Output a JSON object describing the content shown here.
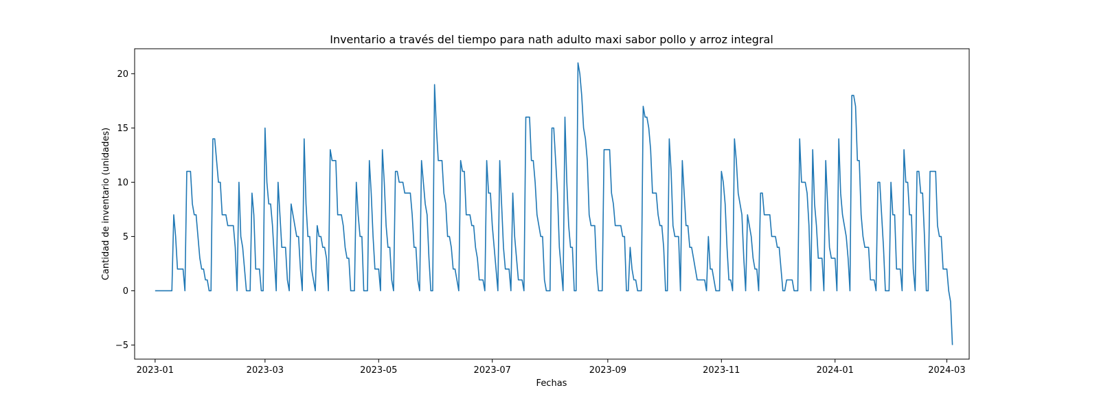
{
  "chart_data": {
    "type": "line",
    "title": "Inventario a través del tiempo para nath adulto maxi sabor pollo y arroz integral",
    "xlabel": "Fechas",
    "ylabel": "Cantidad de inventario (unidades)",
    "x_ticks": [
      "2023-01",
      "2023-03",
      "2023-05",
      "2023-07",
      "2023-09",
      "2023-11",
      "2024-01",
      "2024-03"
    ],
    "y_ticks": [
      -5,
      0,
      5,
      10,
      15,
      20
    ],
    "xlim": [
      "2022-12-21",
      "2024-03-13"
    ],
    "ylim": [
      -6.3,
      22.3
    ],
    "grid": false,
    "legend": "none",
    "colors": {
      "line": "#1f77b4",
      "axes": "#000000"
    },
    "series": [
      {
        "dates": [
          "2023-01-01",
          "2023-01-02",
          "2023-01-04",
          "2023-01-06",
          "2023-01-08",
          "2023-01-10",
          "2023-01-11",
          "2023-01-12",
          "2023-01-13",
          "2023-01-14",
          "2023-01-15",
          "2023-01-16",
          "2023-01-17",
          "2023-01-18",
          "2023-01-19",
          "2023-01-20",
          "2023-01-21",
          "2023-01-22",
          "2023-01-23",
          "2023-01-24",
          "2023-01-25",
          "2023-01-26",
          "2023-01-27",
          "2023-01-28",
          "2023-01-29",
          "2023-01-30",
          "2023-01-31",
          "2023-02-01",
          "2023-02-02",
          "2023-02-03",
          "2023-02-04",
          "2023-02-05",
          "2023-02-06",
          "2023-02-07",
          "2023-02-08",
          "2023-02-09",
          "2023-02-10",
          "2023-02-11",
          "2023-02-12",
          "2023-02-13",
          "2023-02-14",
          "2023-02-15",
          "2023-02-16",
          "2023-02-17",
          "2023-02-18",
          "2023-02-19",
          "2023-02-20",
          "2023-02-21",
          "2023-02-22",
          "2023-02-23",
          "2023-02-24",
          "2023-02-25",
          "2023-02-26",
          "2023-02-27",
          "2023-02-28",
          "2023-03-01",
          "2023-03-02",
          "2023-03-03",
          "2023-03-04",
          "2023-03-05",
          "2023-03-06",
          "2023-03-07",
          "2023-03-08",
          "2023-03-09",
          "2023-03-10",
          "2023-03-11",
          "2023-03-12",
          "2023-03-13",
          "2023-03-14",
          "2023-03-15",
          "2023-03-16",
          "2023-03-17",
          "2023-03-18",
          "2023-03-19",
          "2023-03-20",
          "2023-03-21",
          "2023-03-22",
          "2023-03-23",
          "2023-03-24",
          "2023-03-25",
          "2023-03-26",
          "2023-03-27",
          "2023-03-28",
          "2023-03-29",
          "2023-03-30",
          "2023-03-31",
          "2023-04-01",
          "2023-04-02",
          "2023-04-03",
          "2023-04-04",
          "2023-04-05",
          "2023-04-06",
          "2023-04-07",
          "2023-04-08",
          "2023-04-09",
          "2023-04-10",
          "2023-04-11",
          "2023-04-12",
          "2023-04-13",
          "2023-04-14",
          "2023-04-15",
          "2023-04-16",
          "2023-04-17",
          "2023-04-18",
          "2023-04-19",
          "2023-04-20",
          "2023-04-21",
          "2023-04-22",
          "2023-04-23",
          "2023-04-24",
          "2023-04-25",
          "2023-04-26",
          "2023-04-27",
          "2023-04-28",
          "2023-04-29",
          "2023-04-30",
          "2023-05-01",
          "2023-05-02",
          "2023-05-03",
          "2023-05-04",
          "2023-05-05",
          "2023-05-06",
          "2023-05-07",
          "2023-05-08",
          "2023-05-09",
          "2023-05-10",
          "2023-05-11",
          "2023-05-12",
          "2023-05-13",
          "2023-05-14",
          "2023-05-15",
          "2023-05-16",
          "2023-05-17",
          "2023-05-18",
          "2023-05-19",
          "2023-05-20",
          "2023-05-21",
          "2023-05-22",
          "2023-05-23",
          "2023-05-24",
          "2023-05-25",
          "2023-05-26",
          "2023-05-27",
          "2023-05-28",
          "2023-05-29",
          "2023-05-30",
          "2023-05-31",
          "2023-06-01",
          "2023-06-02",
          "2023-06-03",
          "2023-06-04",
          "2023-06-05",
          "2023-06-06",
          "2023-06-07",
          "2023-06-08",
          "2023-06-09",
          "2023-06-10",
          "2023-06-11",
          "2023-06-12",
          "2023-06-13",
          "2023-06-14",
          "2023-06-15",
          "2023-06-16",
          "2023-06-17",
          "2023-06-18",
          "2023-06-19",
          "2023-06-20",
          "2023-06-21",
          "2023-06-22",
          "2023-06-23",
          "2023-06-24",
          "2023-06-25",
          "2023-06-26",
          "2023-06-27",
          "2023-06-28",
          "2023-06-29",
          "2023-06-30",
          "2023-07-01",
          "2023-07-02",
          "2023-07-03",
          "2023-07-04",
          "2023-07-05",
          "2023-07-06",
          "2023-07-07",
          "2023-07-08",
          "2023-07-09",
          "2023-07-10",
          "2023-07-11",
          "2023-07-12",
          "2023-07-13",
          "2023-07-14",
          "2023-07-15",
          "2023-07-16",
          "2023-07-17",
          "2023-07-18",
          "2023-07-19",
          "2023-07-20",
          "2023-07-21",
          "2023-07-22",
          "2023-07-23",
          "2023-07-24",
          "2023-07-25",
          "2023-07-26",
          "2023-07-27",
          "2023-07-28",
          "2023-07-29",
          "2023-07-30",
          "2023-07-31",
          "2023-08-01",
          "2023-08-02",
          "2023-08-03",
          "2023-08-04",
          "2023-08-05",
          "2023-08-06",
          "2023-08-07",
          "2023-08-08",
          "2023-08-09",
          "2023-08-10",
          "2023-08-11",
          "2023-08-12",
          "2023-08-13",
          "2023-08-14",
          "2023-08-15",
          "2023-08-16",
          "2023-08-17",
          "2023-08-18",
          "2023-08-19",
          "2023-08-20",
          "2023-08-21",
          "2023-08-22",
          "2023-08-23",
          "2023-08-24",
          "2023-08-25",
          "2023-08-26",
          "2023-08-27",
          "2023-08-28",
          "2023-08-29",
          "2023-08-30",
          "2023-08-31",
          "2023-09-01",
          "2023-09-02",
          "2023-09-03",
          "2023-09-04",
          "2023-09-05",
          "2023-09-06",
          "2023-09-07",
          "2023-09-08",
          "2023-09-09",
          "2023-09-10",
          "2023-09-11",
          "2023-09-12",
          "2023-09-13",
          "2023-09-14",
          "2023-09-15",
          "2023-09-16",
          "2023-09-17",
          "2023-09-18",
          "2023-09-19",
          "2023-09-20",
          "2023-09-21",
          "2023-09-22",
          "2023-09-23",
          "2023-09-24",
          "2023-09-25",
          "2023-09-26",
          "2023-09-27",
          "2023-09-28",
          "2023-09-29",
          "2023-09-30",
          "2023-10-01",
          "2023-10-02",
          "2023-10-03",
          "2023-10-04",
          "2023-10-05",
          "2023-10-06",
          "2023-10-07",
          "2023-10-08",
          "2023-10-09",
          "2023-10-10",
          "2023-10-11",
          "2023-10-12",
          "2023-10-13",
          "2023-10-14",
          "2023-10-15",
          "2023-10-16",
          "2023-10-17",
          "2023-10-18",
          "2023-10-19",
          "2023-10-20",
          "2023-10-21",
          "2023-10-22",
          "2023-10-23",
          "2023-10-24",
          "2023-10-25",
          "2023-10-26",
          "2023-10-27",
          "2023-10-28",
          "2023-10-29",
          "2023-10-30",
          "2023-10-31",
          "2023-11-01",
          "2023-11-02",
          "2023-11-03",
          "2023-11-04",
          "2023-11-05",
          "2023-11-06",
          "2023-11-07",
          "2023-11-08",
          "2023-11-09",
          "2023-11-10",
          "2023-11-11",
          "2023-11-12",
          "2023-11-13",
          "2023-11-14",
          "2023-11-15",
          "2023-11-16",
          "2023-11-17",
          "2023-11-18",
          "2023-11-19",
          "2023-11-20",
          "2023-11-21",
          "2023-11-22",
          "2023-11-23",
          "2023-11-24",
          "2023-11-25",
          "2023-11-26",
          "2023-11-27",
          "2023-11-28",
          "2023-11-29",
          "2023-11-30",
          "2023-12-01",
          "2023-12-02",
          "2023-12-03",
          "2023-12-04",
          "2023-12-05",
          "2023-12-06",
          "2023-12-07",
          "2023-12-08",
          "2023-12-09",
          "2023-12-10",
          "2023-12-11",
          "2023-12-12",
          "2023-12-13",
          "2023-12-14",
          "2023-12-15",
          "2023-12-16",
          "2023-12-17",
          "2023-12-18",
          "2023-12-19",
          "2023-12-20",
          "2023-12-21",
          "2023-12-22",
          "2023-12-23",
          "2023-12-24",
          "2023-12-25",
          "2023-12-26",
          "2023-12-27",
          "2023-12-28",
          "2023-12-29",
          "2023-12-30",
          "2023-12-31",
          "2024-01-01",
          "2024-01-02",
          "2024-01-03",
          "2024-01-04",
          "2024-01-05",
          "2024-01-06",
          "2024-01-07",
          "2024-01-08",
          "2024-01-09",
          "2024-01-10",
          "2024-01-11",
          "2024-01-12",
          "2024-01-13",
          "2024-01-14",
          "2024-01-15",
          "2024-01-16",
          "2024-01-17",
          "2024-01-18",
          "2024-01-19",
          "2024-01-20",
          "2024-01-21",
          "2024-01-22",
          "2024-01-23",
          "2024-01-24",
          "2024-01-25",
          "2024-01-26",
          "2024-01-27",
          "2024-01-28",
          "2024-01-29",
          "2024-01-30",
          "2024-01-31",
          "2024-02-01",
          "2024-02-02",
          "2024-02-03",
          "2024-02-04",
          "2024-02-05",
          "2024-02-06",
          "2024-02-07",
          "2024-02-08",
          "2024-02-09",
          "2024-02-10",
          "2024-02-11",
          "2024-02-12",
          "2024-02-13",
          "2024-02-14",
          "2024-02-15",
          "2024-02-16",
          "2024-02-17",
          "2024-02-18",
          "2024-02-19",
          "2024-02-20",
          "2024-02-21",
          "2024-02-22",
          "2024-02-23",
          "2024-02-24",
          "2024-02-25",
          "2024-02-26",
          "2024-02-27",
          "2024-02-28",
          "2024-02-29",
          "2024-03-01",
          "2024-03-02",
          "2024-03-03",
          "2024-03-04"
        ],
        "values": [
          0,
          0,
          0,
          0,
          0,
          0,
          7,
          5,
          2,
          2,
          2,
          2,
          0,
          11,
          11,
          11,
          8,
          7,
          7,
          5,
          3,
          2,
          2,
          1,
          1,
          0,
          0,
          14,
          14,
          12,
          10,
          10,
          7,
          7,
          7,
          6,
          6,
          6,
          6,
          4,
          0,
          10,
          5,
          4,
          2,
          0,
          0,
          0,
          9,
          7,
          2,
          2,
          2,
          0,
          0,
          15,
          10,
          8,
          8,
          6,
          3,
          0,
          10,
          7,
          4,
          4,
          4,
          1,
          0,
          8,
          7,
          6,
          5,
          5,
          2,
          0,
          14,
          8,
          5,
          5,
          2,
          1,
          0,
          6,
          5,
          5,
          4,
          4,
          3,
          0,
          13,
          12,
          12,
          12,
          7,
          7,
          7,
          6,
          4,
          3,
          3,
          0,
          0,
          0,
          10,
          7,
          5,
          5,
          0,
          0,
          0,
          12,
          9,
          5,
          2,
          2,
          2,
          0,
          13,
          10,
          6,
          4,
          4,
          1,
          0,
          11,
          11,
          10,
          10,
          10,
          9,
          9,
          9,
          9,
          7,
          4,
          4,
          1,
          0,
          12,
          10,
          8,
          7,
          3,
          0,
          0,
          19,
          15,
          12,
          12,
          12,
          9,
          8,
          5,
          5,
          4,
          2,
          2,
          1,
          0,
          12,
          11,
          11,
          7,
          7,
          7,
          6,
          6,
          4,
          3,
          1,
          1,
          1,
          0,
          12,
          9,
          9,
          6,
          4,
          2,
          0,
          12,
          8,
          4,
          2,
          2,
          2,
          0,
          9,
          5,
          3,
          1,
          1,
          1,
          0,
          16,
          16,
          16,
          12,
          12,
          10,
          7,
          6,
          5,
          5,
          1,
          0,
          0,
          0,
          15,
          15,
          12,
          9,
          4,
          2,
          0,
          16,
          10,
          6,
          4,
          4,
          0,
          0,
          21,
          20,
          18,
          15,
          14,
          12,
          7,
          6,
          6,
          6,
          2,
          0,
          0,
          0,
          13,
          13,
          13,
          13,
          9,
          8,
          6,
          6,
          6,
          6,
          5,
          5,
          0,
          0,
          4,
          2,
          1,
          1,
          0,
          0,
          0,
          17,
          16,
          16,
          15,
          13,
          9,
          9,
          9,
          7,
          6,
          6,
          4,
          0,
          0,
          14,
          11,
          6,
          5,
          5,
          5,
          0,
          12,
          9,
          6,
          6,
          4,
          4,
          3,
          2,
          1,
          1,
          1,
          1,
          1,
          0,
          5,
          2,
          2,
          1,
          0,
          0,
          0,
          11,
          10,
          8,
          4,
          1,
          1,
          0,
          14,
          12,
          9,
          8,
          7,
          3,
          0,
          7,
          6,
          5,
          3,
          2,
          2,
          0,
          9,
          9,
          7,
          7,
          7,
          7,
          5,
          5,
          5,
          4,
          4,
          2,
          0,
          0,
          1,
          1,
          1,
          1,
          0,
          0,
          0,
          14,
          10,
          10,
          10,
          9,
          6,
          0,
          13,
          8,
          6,
          3,
          3,
          3,
          0,
          12,
          8,
          4,
          3,
          3,
          3,
          0,
          14,
          9,
          7,
          6,
          5,
          3,
          0,
          18,
          18,
          17,
          12,
          12,
          7,
          5,
          4,
          4,
          4,
          1,
          1,
          1,
          0,
          10,
          10,
          7,
          4,
          0,
          0,
          0,
          10,
          7,
          7,
          2,
          2,
          2,
          0,
          13,
          10,
          10,
          7,
          7,
          2,
          0,
          11,
          11,
          9,
          9,
          5,
          0,
          0,
          11,
          11,
          11,
          11,
          6,
          5,
          5,
          2,
          2,
          2,
          0,
          -1,
          -5
        ]
      }
    ]
  }
}
